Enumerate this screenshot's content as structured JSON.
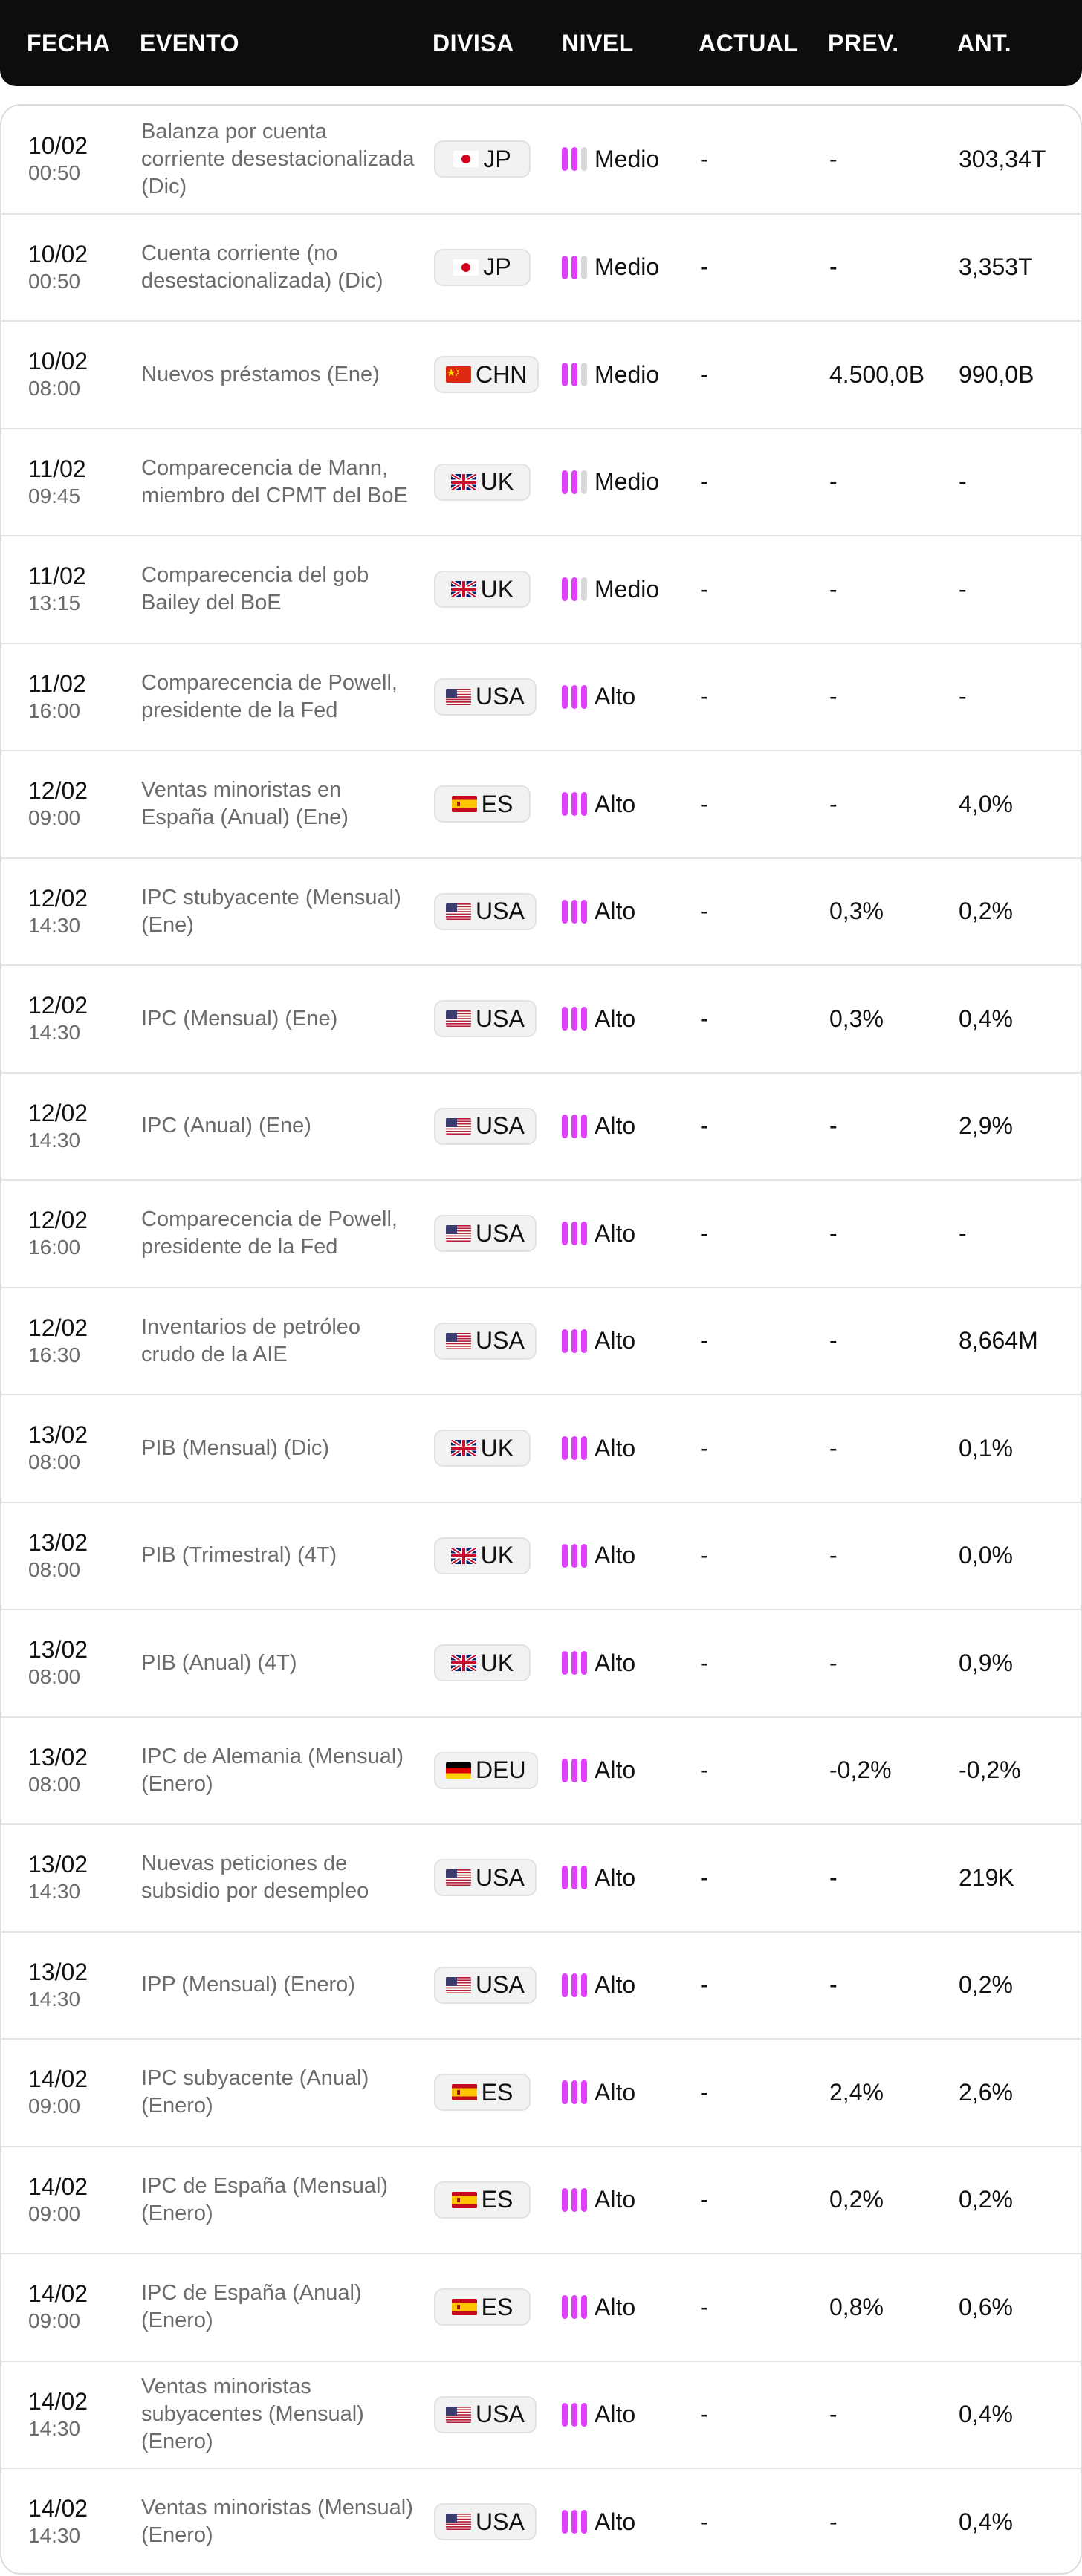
{
  "header": {
    "fecha": "FECHA",
    "evento": "EVENTO",
    "divisa": "DIVISA",
    "nivel": "NIVEL",
    "actual": "ACTUAL",
    "prev": "PREV.",
    "ant": "ANT."
  },
  "colors": {
    "level_bar_active": "#e040fb",
    "level_bar_inactive": "#d8d8d8",
    "header_bg": "#0d0d0d"
  },
  "rows": [
    {
      "date": "10/02",
      "time": "00:50",
      "event": "Balanza por cuenta corriente desestacionalizada (Dic)",
      "currency": "JP",
      "flag": "jp-flag-icon",
      "level": "Medio",
      "level_bars": 2,
      "actual": "-",
      "prev": "-",
      "ant": "303,34T"
    },
    {
      "date": "10/02",
      "time": "00:50",
      "event": "Cuenta corriente (no desestacionalizada) (Dic)",
      "currency": "JP",
      "flag": "jp-flag-icon",
      "level": "Medio",
      "level_bars": 2,
      "actual": "-",
      "prev": "-",
      "ant": "3,353T"
    },
    {
      "date": "10/02",
      "time": "08:00",
      "event": "Nuevos préstamos (Ene)",
      "currency": "CHN",
      "flag": "cn-flag-icon",
      "level": "Medio",
      "level_bars": 2,
      "actual": "-",
      "prev": "4.500,0B",
      "ant": "990,0B"
    },
    {
      "date": "11/02",
      "time": "09:45",
      "event": "Comparecencia de Mann, miembro del CPMT del BoE",
      "currency": "UK",
      "flag": "uk-flag-icon",
      "level": "Medio",
      "level_bars": 2,
      "actual": "-",
      "prev": "-",
      "ant": "-"
    },
    {
      "date": "11/02",
      "time": "13:15",
      "event": "Comparecencia del gob Bailey del BoE",
      "currency": "UK",
      "flag": "uk-flag-icon",
      "level": "Medio",
      "level_bars": 2,
      "actual": "-",
      "prev": "-",
      "ant": "-"
    },
    {
      "date": "11/02",
      "time": "16:00",
      "event": "Comparecencia de Powell, presidente de la Fed",
      "currency": "USA",
      "flag": "us-flag-icon",
      "level": "Alto",
      "level_bars": 3,
      "actual": "-",
      "prev": "-",
      "ant": "-"
    },
    {
      "date": "12/02",
      "time": "09:00",
      "event": "Ventas minoristas en España (Anual) (Ene)",
      "currency": "ES",
      "flag": "es-flag-icon",
      "level": "Alto",
      "level_bars": 3,
      "actual": "-",
      "prev": "-",
      "ant": "4,0%"
    },
    {
      "date": "12/02",
      "time": "14:30",
      "event": "IPC stubyacente (Mensual) (Ene)",
      "currency": "USA",
      "flag": "us-flag-icon",
      "level": "Alto",
      "level_bars": 3,
      "actual": "-",
      "prev": "0,3%",
      "ant": "0,2%"
    },
    {
      "date": "12/02",
      "time": "14:30",
      "event": "IPC (Mensual) (Ene)",
      "currency": "USA",
      "flag": "us-flag-icon",
      "level": "Alto",
      "level_bars": 3,
      "actual": "-",
      "prev": "0,3%",
      "ant": "0,4%"
    },
    {
      "date": "12/02",
      "time": "14:30",
      "event": "IPC (Anual) (Ene)",
      "currency": "USA",
      "flag": "us-flag-icon",
      "level": "Alto",
      "level_bars": 3,
      "actual": "-",
      "prev": "-",
      "ant": "2,9%"
    },
    {
      "date": "12/02",
      "time": "16:00",
      "event": "Comparecencia de Powell, presidente de la Fed",
      "currency": "USA",
      "flag": "us-flag-icon",
      "level": "Alto",
      "level_bars": 3,
      "actual": "-",
      "prev": "-",
      "ant": "-"
    },
    {
      "date": "12/02",
      "time": "16:30",
      "event": "Inventarios de petróleo crudo de la AIE",
      "currency": "USA",
      "flag": "us-flag-icon",
      "level": "Alto",
      "level_bars": 3,
      "actual": "-",
      "prev": "-",
      "ant": "8,664M"
    },
    {
      "date": "13/02",
      "time": "08:00",
      "event": "PIB (Mensual) (Dic)",
      "currency": "UK",
      "flag": "uk-flag-icon",
      "level": "Alto",
      "level_bars": 3,
      "actual": "-",
      "prev": "-",
      "ant": "0,1%"
    },
    {
      "date": "13/02",
      "time": "08:00",
      "event": "PIB (Trimestral) (4T)",
      "currency": "UK",
      "flag": "uk-flag-icon",
      "level": "Alto",
      "level_bars": 3,
      "actual": "-",
      "prev": "-",
      "ant": "0,0%"
    },
    {
      "date": "13/02",
      "time": "08:00",
      "event": "PIB (Anual) (4T)",
      "currency": "UK",
      "flag": "uk-flag-icon",
      "level": "Alto",
      "level_bars": 3,
      "actual": "-",
      "prev": "-",
      "ant": "0,9%"
    },
    {
      "date": "13/02",
      "time": "08:00",
      "event": "IPC de Alemania (Mensual) (Enero)",
      "currency": "DEU",
      "flag": "de-flag-icon",
      "level": "Alto",
      "level_bars": 3,
      "actual": "-",
      "prev": "-0,2%",
      "ant": "-0,2%"
    },
    {
      "date": "13/02",
      "time": "14:30",
      "event": "Nuevas peticiones de subsidio por desempleo",
      "currency": "USA",
      "flag": "us-flag-icon",
      "level": "Alto",
      "level_bars": 3,
      "actual": "-",
      "prev": "-",
      "ant": "219K"
    },
    {
      "date": "13/02",
      "time": "14:30",
      "event": "IPP (Mensual) (Enero)",
      "currency": "USA",
      "flag": "us-flag-icon",
      "level": "Alto",
      "level_bars": 3,
      "actual": "-",
      "prev": "-",
      "ant": "0,2%"
    },
    {
      "date": "14/02",
      "time": "09:00",
      "event": "IPC subyacente (Anual) (Enero)",
      "currency": "ES",
      "flag": "es-flag-icon",
      "level": "Alto",
      "level_bars": 3,
      "actual": "-",
      "prev": "2,4%",
      "ant": "2,6%"
    },
    {
      "date": "14/02",
      "time": "09:00",
      "event": "IPC de España (Mensual) (Enero)",
      "currency": "ES",
      "flag": "es-flag-icon",
      "level": "Alto",
      "level_bars": 3,
      "actual": "-",
      "prev": "0,2%",
      "ant": "0,2%"
    },
    {
      "date": "14/02",
      "time": "09:00",
      "event": "IPC de España (Anual) (Enero)",
      "currency": "ES",
      "flag": "es-flag-icon",
      "level": "Alto",
      "level_bars": 3,
      "actual": "-",
      "prev": "0,8%",
      "ant": "0,6%"
    },
    {
      "date": "14/02",
      "time": "14:30",
      "event": "Ventas minoristas subyacentes (Mensual) (Enero)",
      "currency": "USA",
      "flag": "us-flag-icon",
      "level": "Alto",
      "level_bars": 3,
      "actual": "-",
      "prev": "-",
      "ant": "0,4%"
    },
    {
      "date": "14/02",
      "time": "14:30",
      "event": "Ventas minoristas (Mensual) (Enero)",
      "currency": "USA",
      "flag": "us-flag-icon",
      "level": "Alto",
      "level_bars": 3,
      "actual": "-",
      "prev": "-",
      "ant": "0,4%"
    }
  ]
}
